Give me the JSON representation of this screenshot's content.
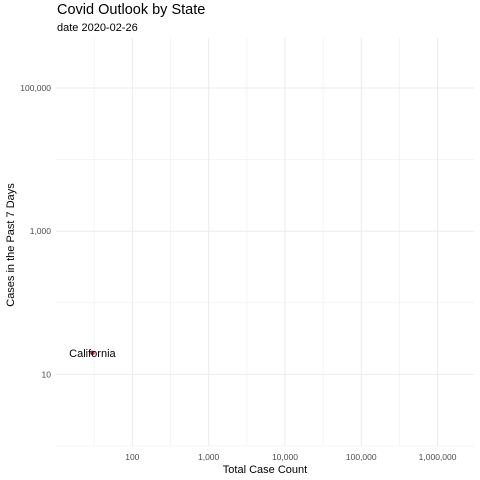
{
  "chart_data": {
    "type": "scatter",
    "title": "Covid Outlook by State",
    "subtitle": "date 2020-02-26",
    "xlabel": "Total Case Count",
    "ylabel": "Cases in the Past 7 Days",
    "x_scale": "log10",
    "y_scale": "log10",
    "xlim": [
      10,
      3000000
    ],
    "ylim": [
      1,
      500000
    ],
    "x_ticks": [
      {
        "value": 100,
        "label": "100"
      },
      {
        "value": 1000,
        "label": "1,000"
      },
      {
        "value": 10000,
        "label": "10,000"
      },
      {
        "value": 100000,
        "label": "100,000"
      },
      {
        "value": 1000000,
        "label": "1,000,000"
      }
    ],
    "y_ticks": [
      {
        "value": 10,
        "label": "10"
      },
      {
        "value": 1000,
        "label": "1,000"
      },
      {
        "value": 100000,
        "label": "100,000"
      }
    ],
    "grid": true,
    "points": [
      {
        "label": "California",
        "x": 30,
        "y": 20,
        "color": "#e31a1c"
      }
    ]
  }
}
